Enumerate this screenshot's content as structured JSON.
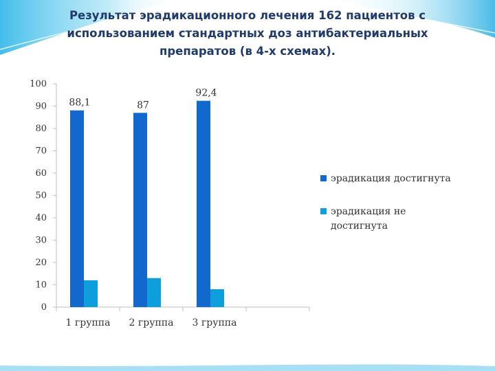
{
  "slide": {
    "title_lines": [
      "Результат эрадикационного лечения 162 пациентов с",
      "использованием стандартных доз антибактериальных",
      "препаратов (в 4-х схемах)."
    ]
  },
  "colors": {
    "series_1": "#1268cc",
    "series_2": "#0d9fdc",
    "title": "#1f3a6b",
    "accent_wave": "#4cc4ec"
  },
  "chart_data": {
    "type": "bar",
    "categories": [
      "1 группа",
      "2 группа",
      "3 группа",
      ""
    ],
    "series": [
      {
        "name": "эрадикация достигнута",
        "values": [
          88.1,
          87,
          92.4,
          null
        ],
        "labels": [
          "88,1",
          "87",
          "92,4",
          ""
        ]
      },
      {
        "name": "эрадикация не достигнута",
        "values": [
          12,
          13,
          8,
          null
        ],
        "labels": [
          "",
          "",
          "",
          ""
        ]
      }
    ],
    "ylim": [
      0,
      100
    ],
    "yticks": [
      0,
      10,
      20,
      30,
      40,
      50,
      60,
      70,
      80,
      90,
      100
    ],
    "xlabel": "",
    "ylabel": "",
    "grid": false,
    "legend_position": "right"
  }
}
